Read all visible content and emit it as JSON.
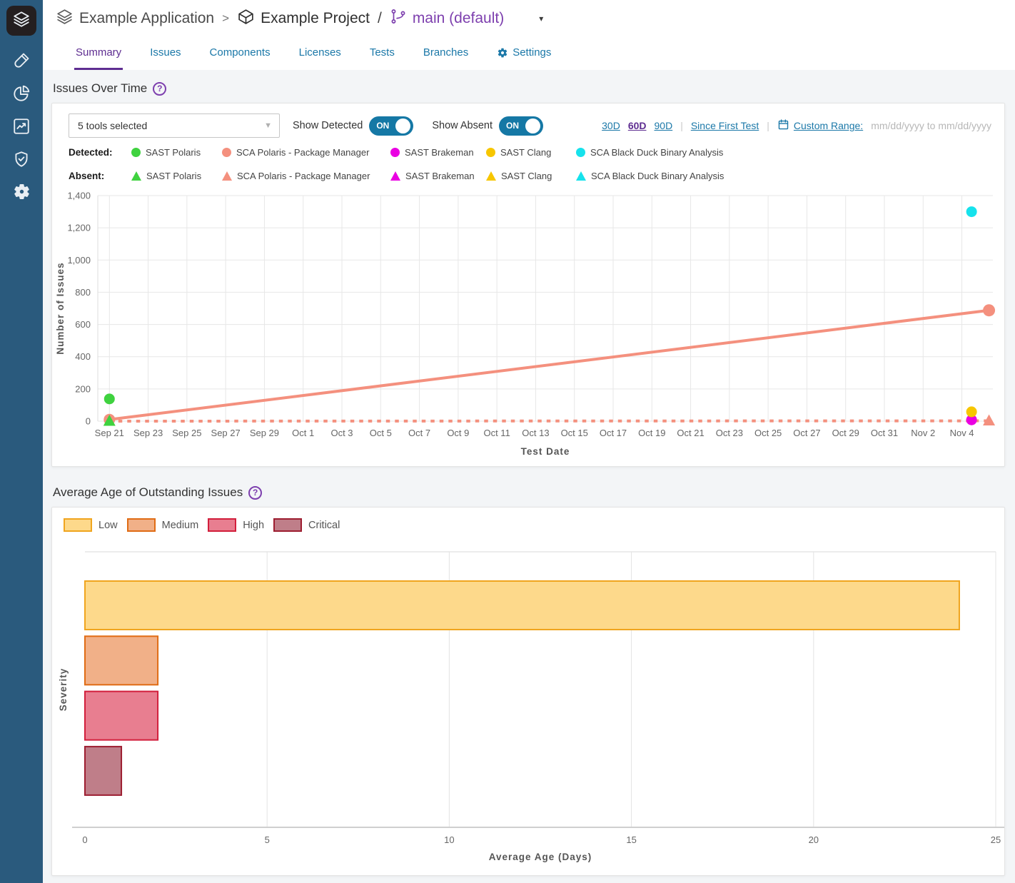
{
  "sidebar": {
    "icons": [
      "layers",
      "test-tube",
      "pie-chart",
      "line-chart",
      "shield-check",
      "gear"
    ],
    "active_icon": "layers"
  },
  "header": {
    "breadcrumb": {
      "app": "Example Application",
      "sep1": ">",
      "project": "Example Project",
      "sep2": "/",
      "branch": "main (default)",
      "caret": "▾"
    },
    "tabs": [
      {
        "label": "Summary",
        "active": true
      },
      {
        "label": "Issues",
        "active": false
      },
      {
        "label": "Components",
        "active": false
      },
      {
        "label": "Licenses",
        "active": false
      },
      {
        "label": "Tests",
        "active": false
      },
      {
        "label": "Branches",
        "active": false
      },
      {
        "label": "Settings",
        "active": false,
        "icon": "gear"
      }
    ]
  },
  "issues_over_time": {
    "title": "Issues Over Time",
    "toolbar": {
      "tools_selected": "5 tools selected",
      "select_caret": "▼",
      "show_detected_label": "Show Detected",
      "show_absent_label": "Show Absent",
      "toggle_on": "ON",
      "ranges": [
        {
          "label": "30D",
          "active": false
        },
        {
          "label": "60D",
          "active": true
        },
        {
          "label": "90D",
          "active": false
        }
      ],
      "since_first_test": "Since First Test",
      "custom_range_label": "Custom Range:",
      "custom_range_placeholder": "mm/dd/yyyy to mm/dd/yyyy"
    },
    "legend": {
      "detected_label": "Detected:",
      "absent_label": "Absent:",
      "tools": [
        {
          "name": "SAST Polaris",
          "color": "#3fd23f"
        },
        {
          "name": "SCA Polaris - Package Manager",
          "color": "#f4907e"
        },
        {
          "name": "SAST Brakeman",
          "color": "#ea00e2"
        },
        {
          "name": "SAST Clang",
          "color": "#f7c600"
        },
        {
          "name": "SCA Black Duck Binary Analysis",
          "color": "#16e2ec"
        }
      ]
    }
  },
  "avg_age": {
    "title": "Average Age of Outstanding Issues",
    "legend": [
      {
        "label": "Low",
        "fill": "#fdd98b",
        "border": "#f0a51f"
      },
      {
        "label": "Medium",
        "fill": "#f1b088",
        "border": "#e06c15"
      },
      {
        "label": "High",
        "fill": "#e87e90",
        "border": "#d21f3c"
      },
      {
        "label": "Critical",
        "fill": "#bf7e89",
        "border": "#9d1e31"
      }
    ]
  },
  "chart_data": [
    {
      "type": "line",
      "title": "Issues Over Time",
      "xlabel": "Test Date",
      "ylabel": "Number of Issues",
      "ylim": [
        0,
        1400
      ],
      "yticks": [
        0,
        200,
        400,
        600,
        800,
        1000,
        1200,
        1400
      ],
      "xticks": [
        "Sep 21",
        "Sep 23",
        "Sep 25",
        "Sep 27",
        "Sep 29",
        "Oct 1",
        "Oct 3",
        "Oct 5",
        "Oct 7",
        "Oct 9",
        "Oct 11",
        "Oct 13",
        "Oct 15",
        "Oct 17",
        "Oct 19",
        "Oct 21",
        "Oct 23",
        "Oct 25",
        "Oct 27",
        "Oct 29",
        "Oct 31",
        "Nov 2",
        "Nov 4"
      ],
      "xtick_interval_days": 2,
      "grid": true,
      "series": [
        {
          "name": "SCA Polaris - Package Manager (Absent)",
          "color": "#f4907e",
          "line": "dashed",
          "marker": "triangle",
          "points": [
            {
              "date": "Sep 21",
              "day": 0,
              "y": 0,
              "marker": false
            },
            {
              "date": "Nov 5",
              "day": 45.4,
              "y": 2,
              "marker": true
            }
          ]
        },
        {
          "name": "SCA Polaris - Package Manager (Detected)",
          "color": "#f4907e",
          "line": "solid",
          "marker": "circle",
          "points": [
            {
              "date": "Sep 21",
              "day": 0,
              "y": 10,
              "marker": true,
              "r": 8
            },
            {
              "date": "Nov 5",
              "day": 45.4,
              "y": 688,
              "marker": true,
              "r": 8.5
            }
          ]
        },
        {
          "name": "SAST Polaris (Absent)",
          "color": "#3fd23f",
          "marker": "triangle",
          "points": [
            {
              "date": "Sep 21",
              "day": 0,
              "y": 0,
              "marker": true
            }
          ]
        },
        {
          "name": "SAST Polaris (Detected)",
          "color": "#3fd23f",
          "marker": "circle",
          "points": [
            {
              "date": "Sep 21",
              "day": 0,
              "y": 138,
              "marker": true
            }
          ]
        },
        {
          "name": "SAST Brakeman (Detected)",
          "color": "#ea00e2",
          "marker": "circle",
          "points": [
            {
              "date": "Nov 4",
              "day": 44.5,
              "y": 8,
              "marker": true
            }
          ]
        },
        {
          "name": "SAST Clang (Detected)",
          "color": "#f7c600",
          "marker": "circle",
          "points": [
            {
              "date": "Nov 4",
              "day": 44.5,
              "y": 58,
              "marker": true
            }
          ]
        },
        {
          "name": "SCA Black Duck Binary Analysis (Detected)",
          "color": "#16e2ec",
          "marker": "circle",
          "points": [
            {
              "date": "Nov 4",
              "day": 44.5,
              "y": 1300,
              "marker": true
            }
          ]
        }
      ]
    },
    {
      "type": "bar",
      "orientation": "horizontal",
      "title": "Average Age of Outstanding Issues",
      "categories": [
        "Low",
        "Medium",
        "High",
        "Critical"
      ],
      "values": [
        24,
        2,
        2,
        1
      ],
      "xlabel": "Average Age (Days)",
      "ylabel": "Severity",
      "xlim": [
        0,
        25
      ],
      "xticks": [
        0,
        5,
        10,
        15,
        20,
        25
      ],
      "grid": true,
      "colors": [
        {
          "fill": "#fdd98b",
          "border": "#f0a51f"
        },
        {
          "fill": "#f1b088",
          "border": "#e06c15"
        },
        {
          "fill": "#e87e90",
          "border": "#d21f3c"
        },
        {
          "fill": "#bf7e89",
          "border": "#9d1e31"
        }
      ]
    }
  ]
}
